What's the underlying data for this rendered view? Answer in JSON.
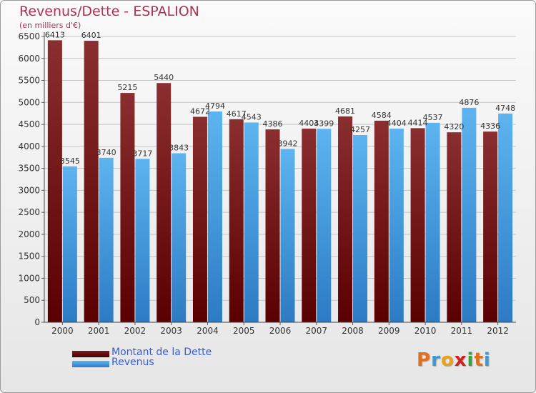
{
  "title": "Revenus/Dette - ESPALION",
  "subtitle": "(en milliers d'€)",
  "colors": {
    "debt": "#7a1e1e",
    "revenue": "#4da6e8",
    "title": "#b03050",
    "legend_text": "#3a5bd6"
  },
  "logo": {
    "text": "Proxiti",
    "colors": [
      "#e07020",
      "#3a9ad8",
      "#e8a020",
      "#d02020",
      "#3aa040",
      "#e07020",
      "#3a9ad8"
    ]
  },
  "chart_data": {
    "type": "bar",
    "categories": [
      "2000",
      "2001",
      "2002",
      "2003",
      "2004",
      "2005",
      "2006",
      "2007",
      "2008",
      "2009",
      "2010",
      "2011",
      "2012"
    ],
    "series": [
      {
        "name": "Montant de la Dette",
        "values": [
          6413,
          6401,
          5215,
          5440,
          4672,
          4617,
          4386,
          4403,
          4681,
          4584,
          4414,
          4320,
          4336
        ]
      },
      {
        "name": "Revenus",
        "values": [
          3545,
          3740,
          3717,
          3843,
          4794,
          4543,
          3942,
          4399,
          4257,
          4404,
          4537,
          4876,
          4748
        ]
      }
    ],
    "yticks": [
      0,
      500,
      1000,
      1500,
      2000,
      2500,
      3000,
      3500,
      4000,
      4500,
      5000,
      5500,
      6000,
      6500
    ],
    "ylim": [
      0,
      6500
    ],
    "grid": true,
    "legend": "bottom-left"
  }
}
